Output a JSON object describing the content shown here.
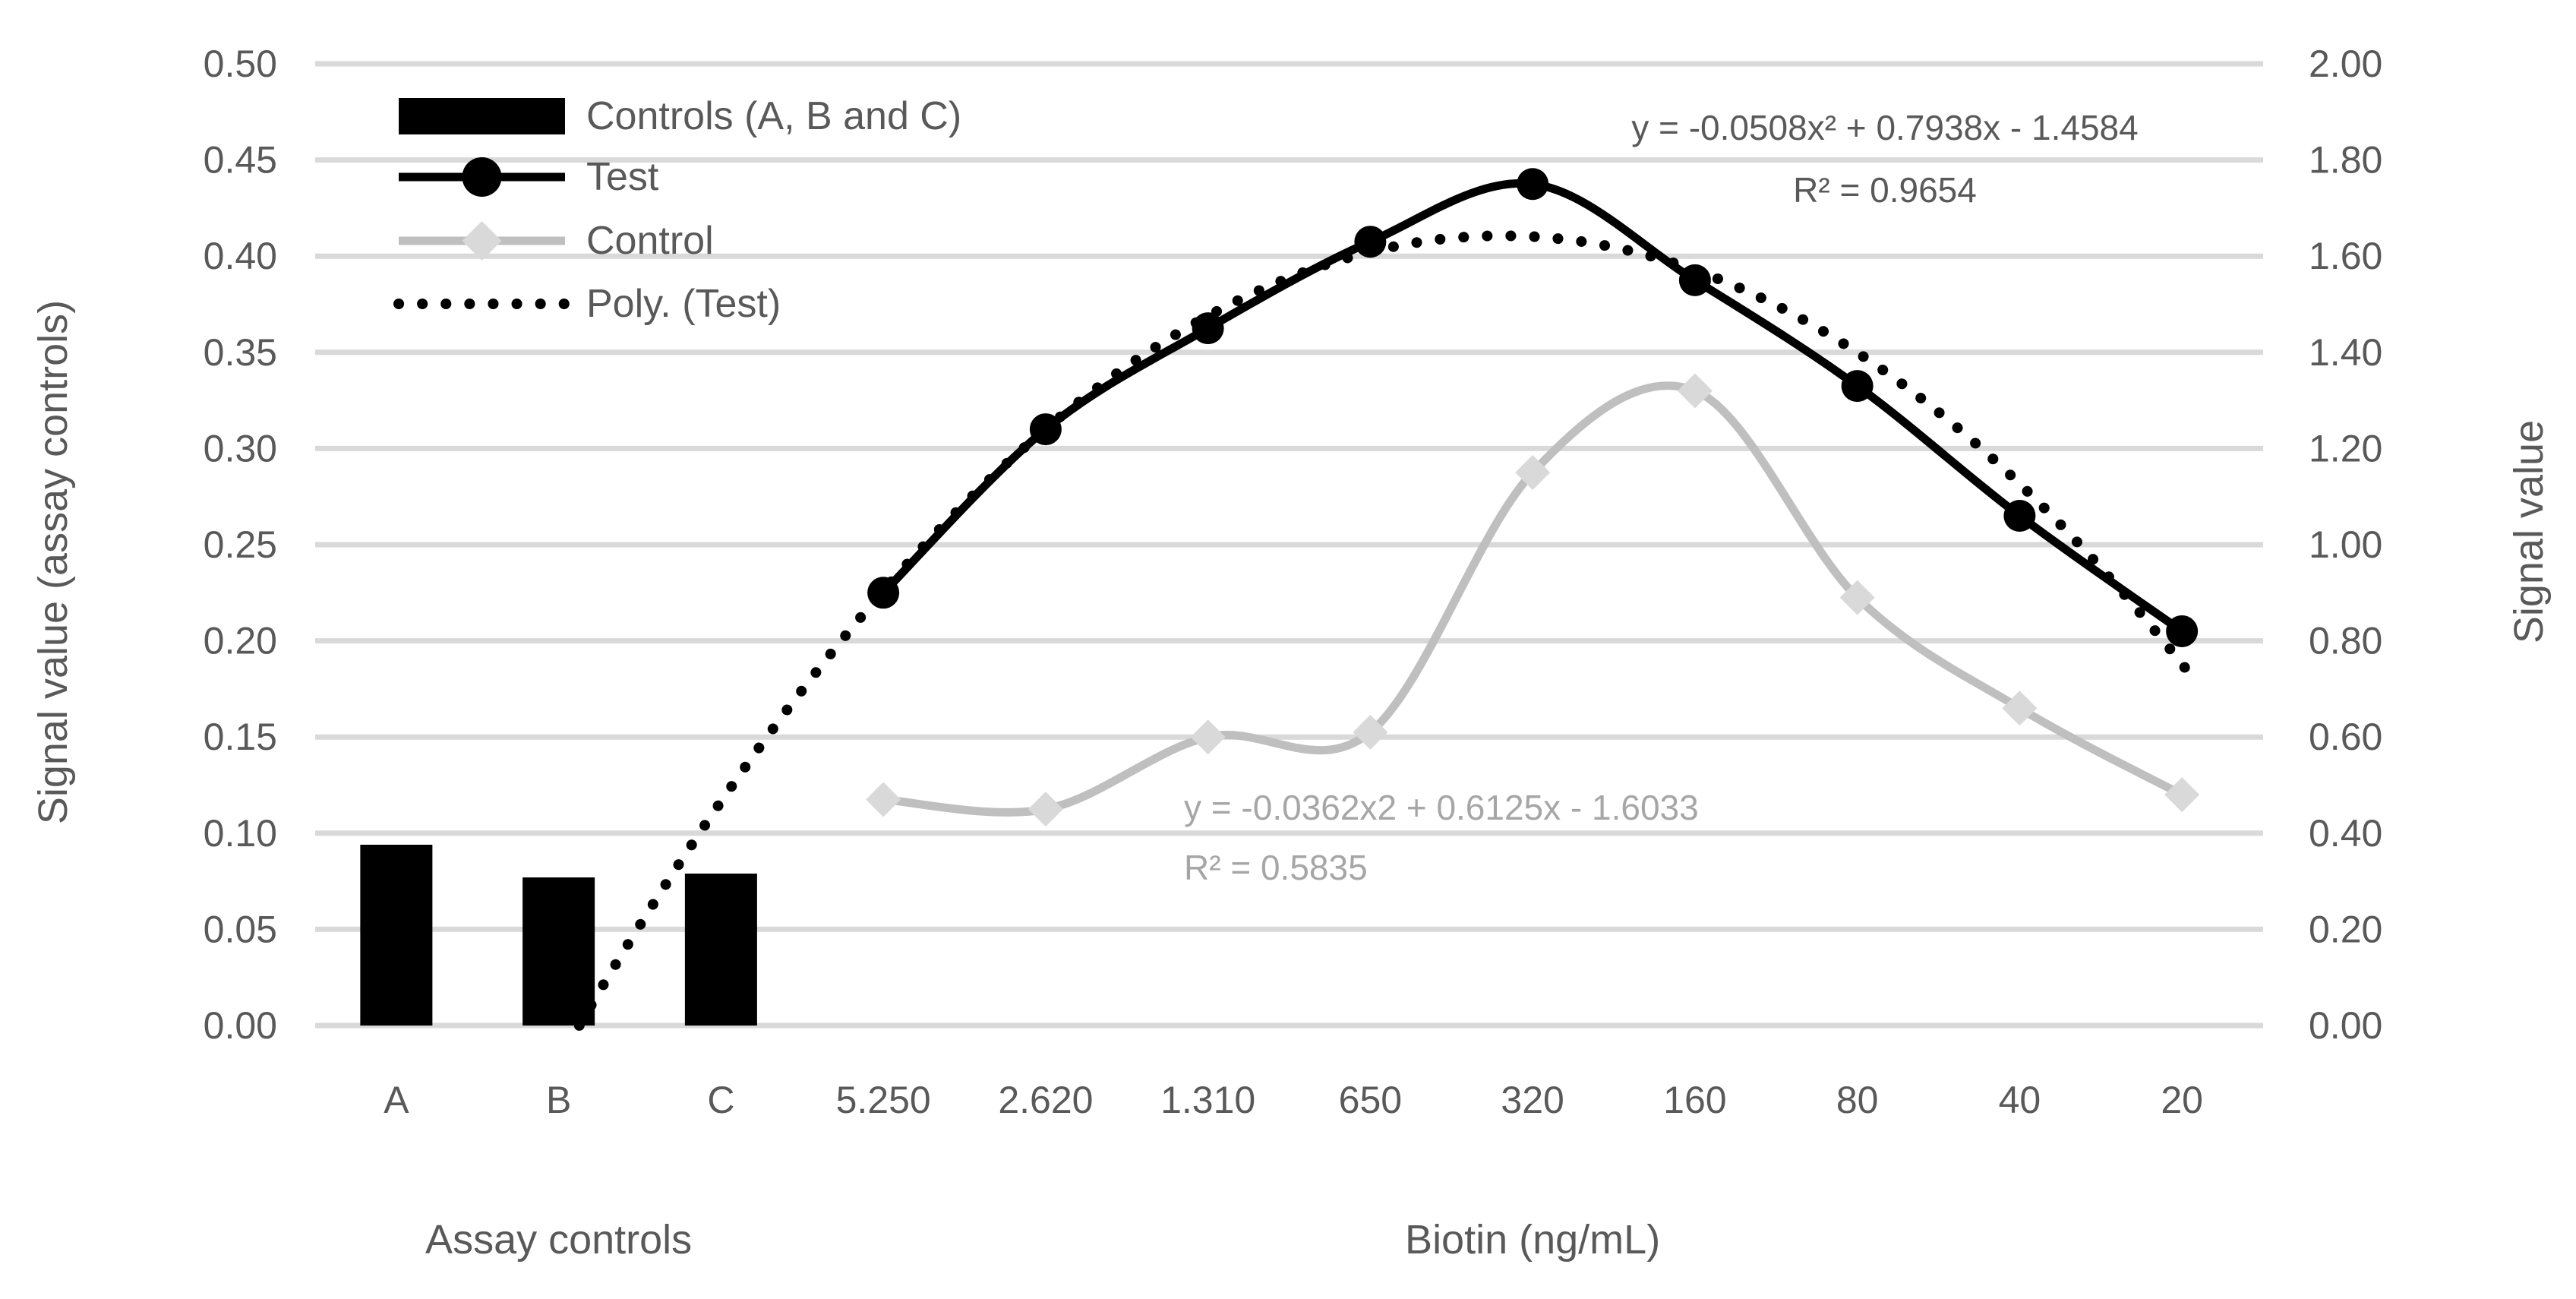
{
  "chart_data": {
    "type": "combo",
    "categories": [
      "A",
      "B",
      "C",
      "5.250",
      "2.620",
      "1.310",
      "650",
      "320",
      "160",
      "80",
      "40",
      "20"
    ],
    "x_axis": {
      "group_labels": [
        {
          "label": "Assay controls",
          "from": 0,
          "to": 2
        },
        {
          "label": "Biotin (ng/mL)",
          "from": 3,
          "to": 11
        }
      ]
    },
    "left_axis": {
      "title": "Signal value (assay controls)",
      "min": 0,
      "max": 0.5,
      "step": 0.05,
      "ticks": [
        "0.50",
        "0.45",
        "0.40",
        "0.35",
        "0.30",
        "0.25",
        "0.20",
        "0.15",
        "0.10",
        "0.05",
        "0.00"
      ]
    },
    "right_axis": {
      "title": "Signal value",
      "min": 0,
      "max": 2,
      "step": 0.2,
      "ticks": [
        "2.00",
        "1.80",
        "1.60",
        "1.40",
        "1.20",
        "1.00",
        "0.80",
        "0.60",
        "0.40",
        "0.20",
        "0.00"
      ]
    },
    "grid": {
      "on": true,
      "color": "#D9D9D9"
    },
    "series": [
      {
        "name": "Controls (A, B and C)",
        "type": "bar",
        "axis": "left",
        "color": "#000000",
        "values": [
          0.094,
          0.077,
          0.079,
          null,
          null,
          null,
          null,
          null,
          null,
          null,
          null,
          null
        ]
      },
      {
        "name": "Test",
        "type": "line",
        "axis": "right",
        "color": "#000000",
        "marker": "circle",
        "marker_color": "#000000",
        "values": [
          null,
          null,
          null,
          0.9,
          1.24,
          1.45,
          1.63,
          1.75,
          1.55,
          1.33,
          1.06,
          0.82
        ]
      },
      {
        "name": "Control",
        "type": "line",
        "axis": "right",
        "color": "#BFBFBF",
        "marker": "diamond",
        "marker_color": "#D9D9D9",
        "values": [
          null,
          null,
          null,
          0.47,
          0.45,
          0.6,
          0.61,
          1.15,
          1.32,
          0.89,
          0.66,
          0.48
        ]
      },
      {
        "name": "Poly. (Test)",
        "type": "poly_trendline",
        "axis": "right",
        "color": "#000000",
        "style": "dotted",
        "equation": {
          "a": -0.0508,
          "b": 0.7938,
          "c": -1.4584
        },
        "x_domain": [
          2.127,
          12.05
        ]
      }
    ],
    "legend": {
      "position": "top-left",
      "items": [
        {
          "label": "Controls (A, B and C)",
          "swatch": "bar"
        },
        {
          "label": "Test",
          "swatch": "line-circle"
        },
        {
          "label": "Control",
          "swatch": "line-diamond"
        },
        {
          "label": "Poly. (Test)",
          "swatch": "dotted-line"
        }
      ]
    },
    "annotations": [
      {
        "id": "test-trendline-equation",
        "lines": [
          "y = -0.0508x² + 0.7938x - 1.4584",
          "R² = 0.9654"
        ],
        "color": "#595959",
        "align": "center"
      },
      {
        "id": "control-equation",
        "lines": [
          "y = -0.0362x2 + 0.6125x - 1.6033",
          "R² = 0.5835"
        ],
        "color": "#A6A6A6",
        "align": "left"
      }
    ],
    "text_color": "#595959",
    "background": "#FFFFFF"
  }
}
